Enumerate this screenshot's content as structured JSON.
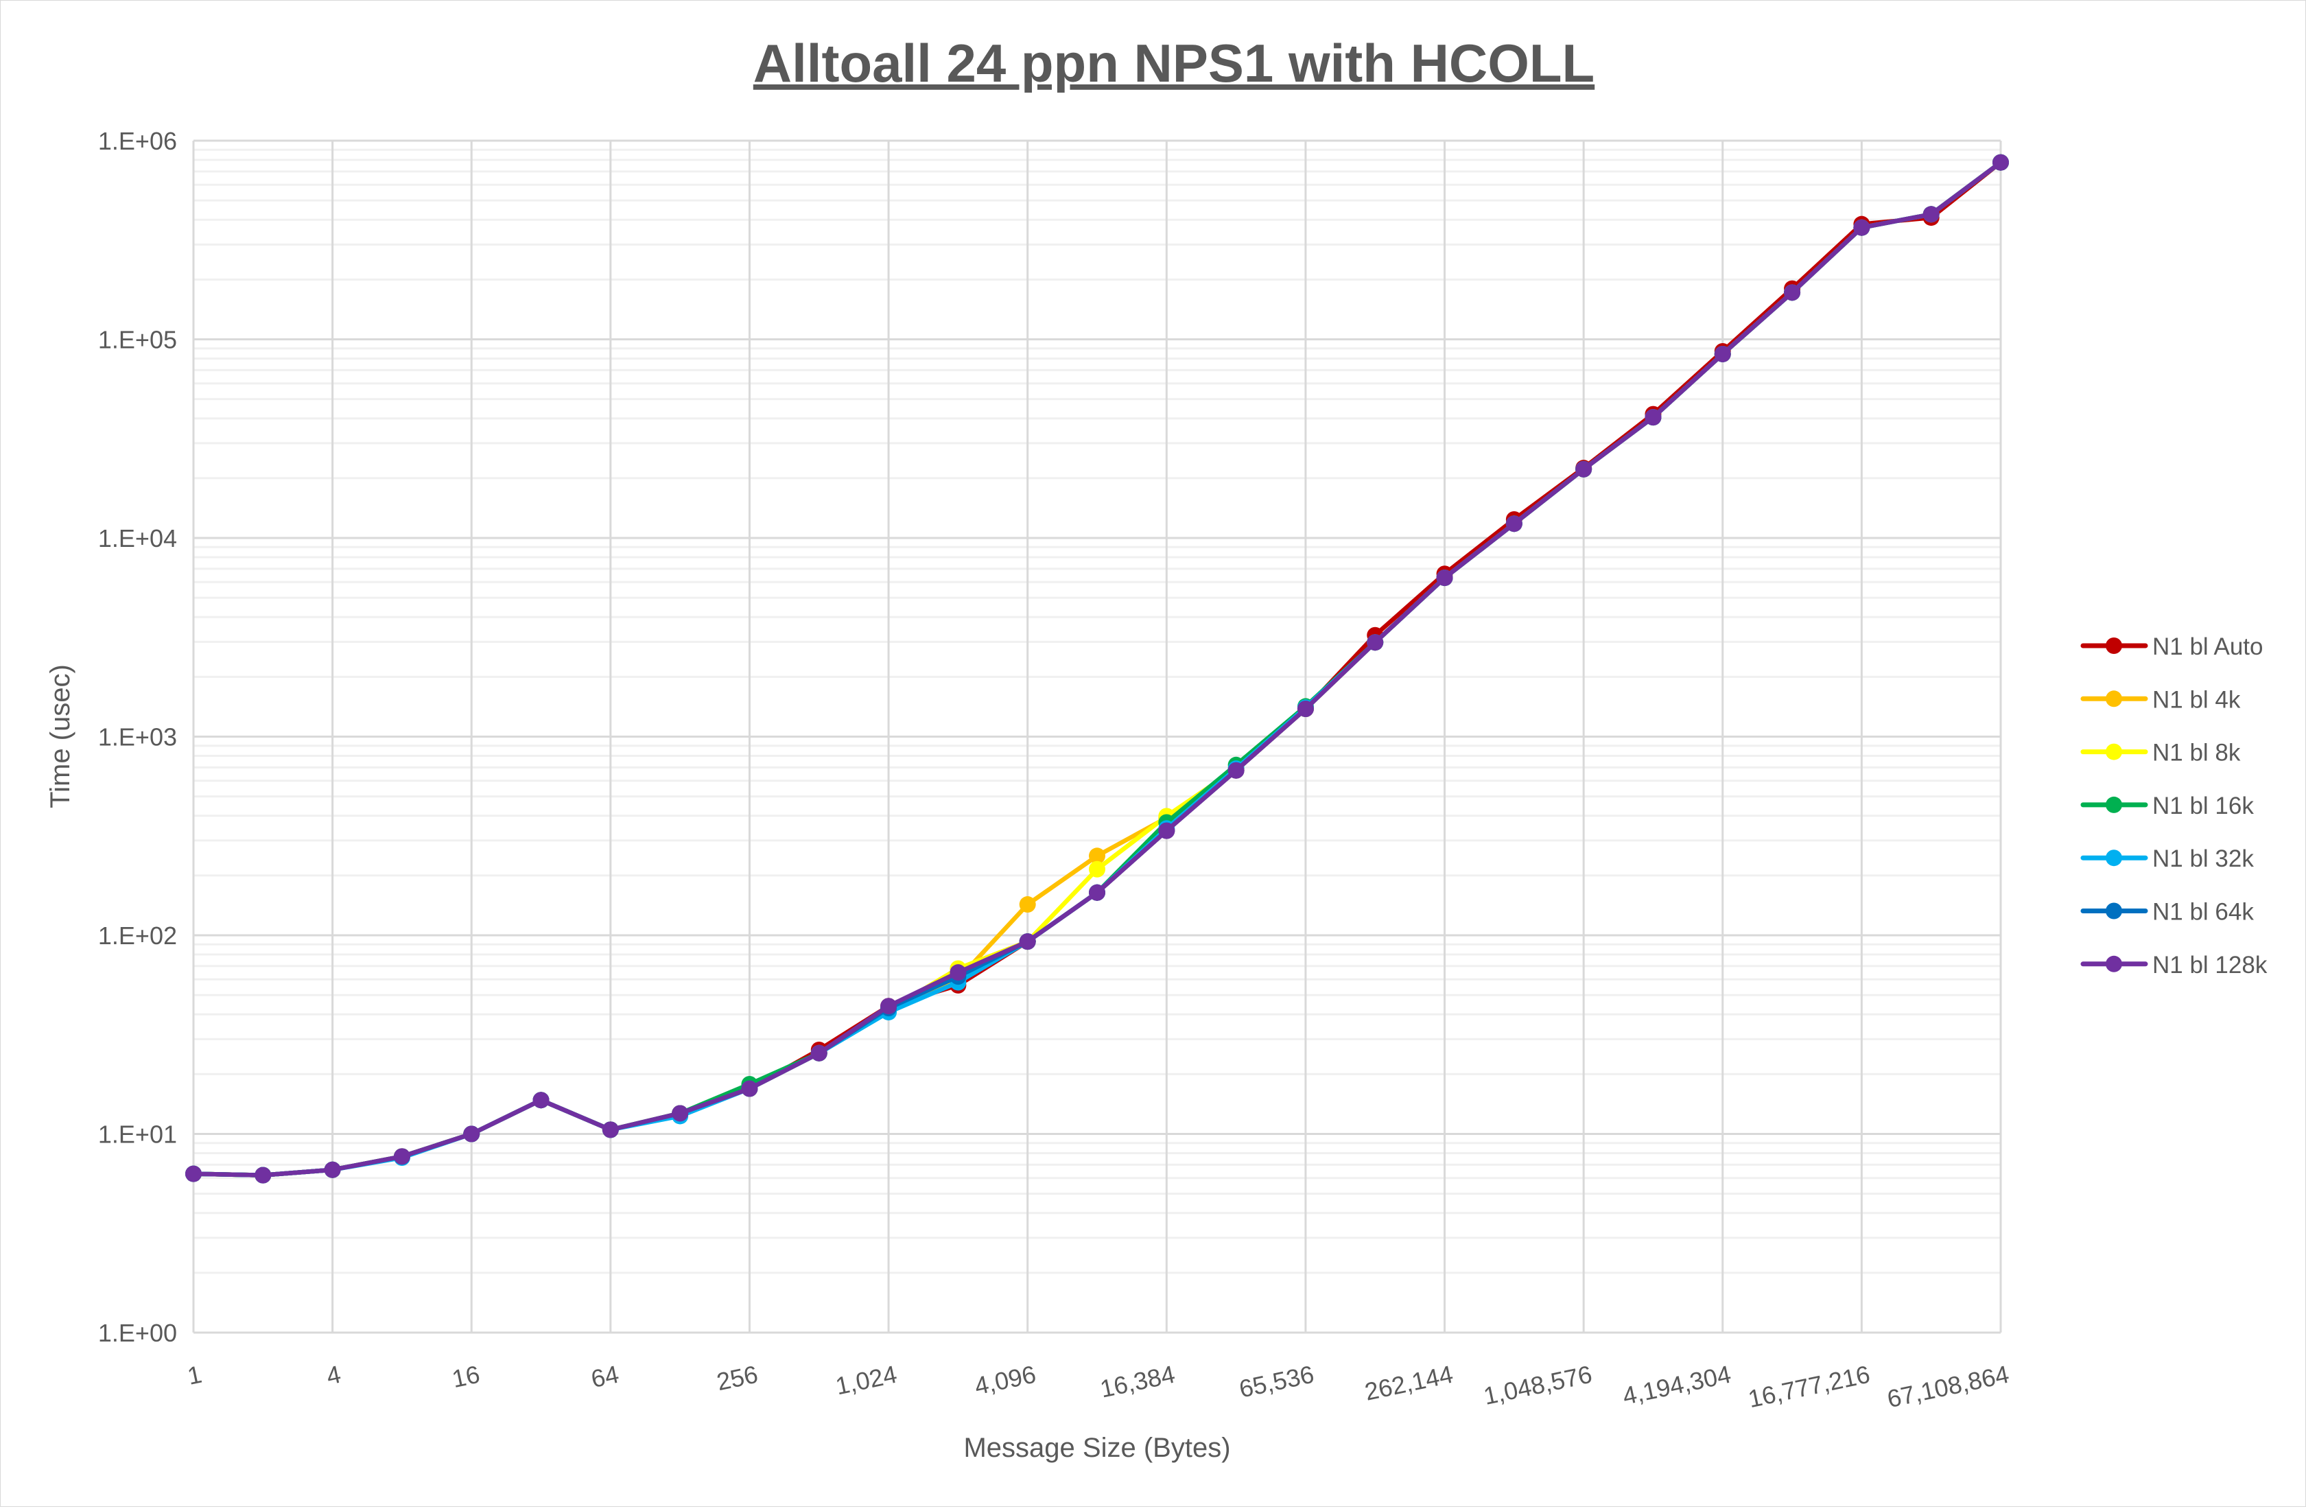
{
  "chart_data": {
    "type": "line",
    "title": "Alltoall 24 ppn NPS1 with HCOLL",
    "xlabel": "Message Size (Bytes)",
    "ylabel": "Time (usec)",
    "x_scale": "log2",
    "y_scale": "log10",
    "ylim": [
      1,
      1000000
    ],
    "grid": true,
    "legend_position": "right",
    "x": [
      1,
      2,
      4,
      8,
      16,
      32,
      64,
      128,
      256,
      512,
      1024,
      2048,
      4096,
      8192,
      16384,
      32768,
      65536,
      131072,
      262144,
      524288,
      1048576,
      2097152,
      4194304,
      8388608,
      16777216,
      33554432,
      67108864
    ],
    "x_tick_labels": [
      "1",
      "4",
      "16",
      "64",
      "256",
      "1,024",
      "4,096",
      "16,384",
      "65,536",
      "262,144",
      "1,048,576",
      "4,194,304",
      "16,777,216",
      "67,108,864"
    ],
    "y_tick_labels": [
      "1.E+00",
      "1.E+01",
      "1.E+02",
      "1.E+03",
      "1.E+04",
      "1.E+05",
      "1.E+06"
    ],
    "series": [
      {
        "name": "N1 bl Auto",
        "color": "#c00000",
        "values": [
          6.3,
          6.2,
          6.6,
          7.7,
          10.0,
          14.8,
          10.5,
          12.7,
          16.9,
          26.5,
          44,
          56,
          93,
          164,
          336,
          676,
          1380,
          3240,
          6600,
          12400,
          22500,
          42000,
          87000,
          180000,
          380000,
          410000,
          777000
        ]
      },
      {
        "name": "N1 bl 4k",
        "color": "#ffc000",
        "values": [
          6.3,
          6.2,
          6.6,
          7.7,
          10.0,
          14.8,
          10.5,
          12.7,
          16.9,
          25.5,
          43,
          60,
          143,
          251,
          390,
          676,
          1380,
          2980,
          6300,
          11800,
          22200,
          40500,
          84300,
          172000,
          365000,
          426000,
          777000
        ]
      },
      {
        "name": "N1 bl 8k",
        "color": "#ffff00",
        "values": [
          6.3,
          6.2,
          6.6,
          7.7,
          10.0,
          14.8,
          10.5,
          12.7,
          16.9,
          25.5,
          42,
          68,
          93,
          215,
          398,
          690,
          1380,
          2980,
          6300,
          11800,
          22200,
          40500,
          84300,
          172000,
          365000,
          426000,
          777000
        ]
      },
      {
        "name": "N1 bl 16k",
        "color": "#00b050",
        "values": [
          6.3,
          6.2,
          6.6,
          7.7,
          10.0,
          14.8,
          10.5,
          12.7,
          17.8,
          25.5,
          43,
          63,
          93,
          164,
          370,
          720,
          1420,
          2980,
          6300,
          11800,
          22200,
          40500,
          84300,
          172000,
          365000,
          426000,
          777000
        ]
      },
      {
        "name": "N1 bl 32k",
        "color": "#00b0f0",
        "values": [
          6.3,
          6.2,
          6.6,
          7.6,
          10.0,
          14.8,
          10.5,
          12.3,
          16.9,
          25.5,
          41,
          58,
          93,
          164,
          345,
          690,
          1400,
          2980,
          6300,
          11800,
          22200,
          40500,
          84300,
          172000,
          365000,
          426000,
          777000
        ]
      },
      {
        "name": "N1 bl 64k",
        "color": "#0070c0",
        "values": [
          6.3,
          6.2,
          6.6,
          7.7,
          10.0,
          14.8,
          10.5,
          12.7,
          16.9,
          25.5,
          43,
          62,
          93,
          164,
          336,
          676,
          1380,
          2980,
          6300,
          11800,
          22200,
          40500,
          84300,
          172000,
          365000,
          426000,
          777000
        ]
      },
      {
        "name": "N1 bl 128k",
        "color": "#7030a0",
        "values": [
          6.3,
          6.2,
          6.6,
          7.7,
          10.0,
          14.8,
          10.5,
          12.7,
          16.9,
          25.5,
          44,
          65,
          93,
          164,
          336,
          676,
          1380,
          2980,
          6300,
          11800,
          22200,
          40500,
          84300,
          172000,
          365000,
          426000,
          777000
        ]
      }
    ]
  }
}
